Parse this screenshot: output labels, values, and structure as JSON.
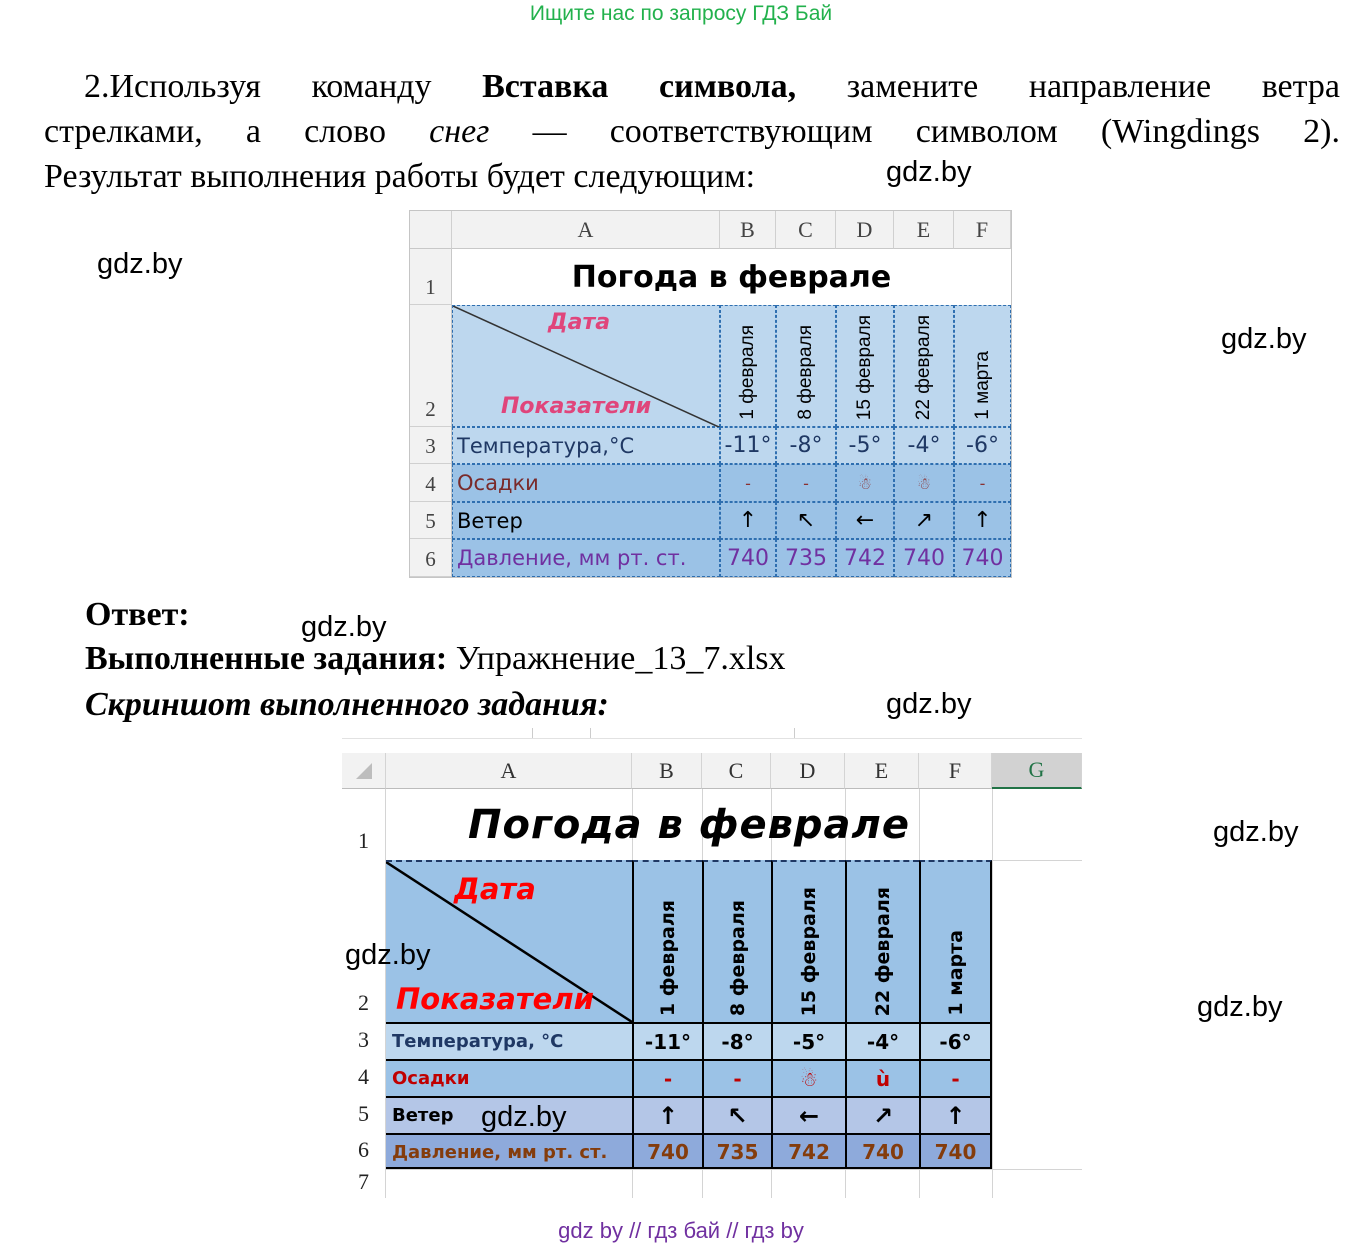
{
  "banner": "Ищите нас по запросу ГДЗ Бай",
  "task": {
    "number": "2.",
    "p1": "Используя команду ",
    "bold": "Вставка символа,",
    "p2": " замените направление ветра",
    "p3": "стрелками, а слово ",
    "italic": "снег",
    "p4": " — соответствующим символом (Wingdings 2).",
    "p5": "Результат выполнения работы будет следующим:"
  },
  "watermark": "gdz.by",
  "answer": {
    "label": "Ответ:",
    "done_label": "Выполненные задания:",
    "done_file": " Упражнение_13_7.xlsx",
    "screenshot_label": "Скриншот выполненного задания:"
  },
  "sheet1": {
    "columns": [
      "A",
      "B",
      "C",
      "D",
      "E",
      "F"
    ],
    "row_numbers": [
      "1",
      "2",
      "3",
      "4",
      "5",
      "6"
    ],
    "title": "Погода в феврале",
    "corner_top": "Дата",
    "corner_bottom": "Показатели",
    "dates": [
      "1 февраля",
      "8 февраля",
      "15 февраля",
      "22 февраля",
      "1 марта"
    ],
    "rows": [
      {
        "label": "Температура,°С",
        "values": [
          "-11°",
          "-8°",
          "-5°",
          "-4°",
          "-6°"
        ]
      },
      {
        "label": "Осадки",
        "values": [
          "-",
          "-",
          "☃",
          "☃",
          "-"
        ]
      },
      {
        "label": "Ветер",
        "values": [
          "↑",
          "↖",
          "←",
          "↗",
          "↑"
        ]
      },
      {
        "label": "Давление, мм рт. ст.",
        "values": [
          "740",
          "735",
          "742",
          "740",
          "740"
        ]
      }
    ]
  },
  "sheet2": {
    "columns": [
      "A",
      "B",
      "C",
      "D",
      "E",
      "F",
      "G"
    ],
    "row_numbers": [
      "1",
      "2",
      "3",
      "4",
      "5",
      "6",
      "7"
    ],
    "title": "Погода в феврале",
    "corner_top": "Дата",
    "corner_bottom": "Показатели",
    "dates": [
      "1 февраля",
      "8 февраля",
      "15 февраля",
      "22 февраля",
      "1 марта"
    ],
    "rows": [
      {
        "label": "Температура, °С",
        "values": [
          "-11°",
          "-8°",
          "-5°",
          "-4°",
          "-6°"
        ]
      },
      {
        "label": "Осадки",
        "values": [
          "-",
          "-",
          "☃",
          "ù",
          "-"
        ]
      },
      {
        "label": "Ветер",
        "values": [
          "↑",
          "↖",
          "←",
          "↗",
          "↑"
        ]
      },
      {
        "label": "Давление, мм рт. ст.",
        "values": [
          "740",
          "735",
          "742",
          "740",
          "740"
        ]
      }
    ]
  },
  "colors": {
    "banner": "#22b14c",
    "footer": "#7030a0",
    "cell_blue": "#9bc2e6",
    "cell_light": "#bdd7ee",
    "temp_text": "#1f3864",
    "osadki_text": "#c00000",
    "pressure_text": "#843c0c",
    "corner_red": "#ff0000",
    "corner_pink": "#e0457b"
  },
  "footer": "gdz by  //  гдз бай  //  гдз by"
}
